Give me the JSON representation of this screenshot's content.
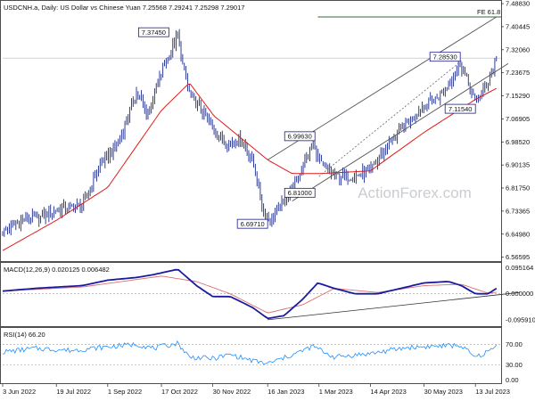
{
  "header": {
    "symbol_line": "USDCNH.a, Daily:  US Dollar vs Chinese Yuan  7.25568 7.29241 7.25298 7.29017",
    "macd_line": "MACD(12,26,9) 0.020125 0.006482",
    "rsi_line": "RSI(14) 66.20"
  },
  "watermark": "ActionForex.com",
  "colors": {
    "candle": "#1b2a8a",
    "ma": "#e01b1b",
    "channel": "#555555",
    "fe_line": "#2f6b2f",
    "macd": "#1a1aa0",
    "signal": "#d97070",
    "rsi": "#1e90ff"
  },
  "chart_data": [
    {
      "type": "candlestick",
      "title": "USDCNH.a, Daily: US Dollar vs Chinese Yuan",
      "ylim": [
        6.555,
        7.495
      ],
      "y_ticks": [
        "7.48830",
        "7.40445",
        "7.32060",
        "7.23675",
        "7.15290",
        "7.06905",
        "6.98520",
        "6.90135",
        "6.81750",
        "6.73365",
        "6.64980",
        "6.56595"
      ],
      "x_ticks": [
        "3 Jun 2022",
        "19 Jul 2022",
        "1 Sep 2022",
        "17 Oct 2022",
        "30 Nov 2022",
        "16 Jan 2023",
        "1 Mar 2023",
        "14 Apr 2023",
        "30 May 2023",
        "13 Jul 2023"
      ],
      "price_path": [
        [
          "2022-06-03",
          6.66
        ],
        [
          "2022-06-20",
          6.7
        ],
        [
          "2022-07-05",
          6.71
        ],
        [
          "2022-07-19",
          6.74
        ],
        [
          "2022-08-10",
          6.75
        ],
        [
          "2022-08-25",
          6.9
        ],
        [
          "2022-09-10",
          6.98
        ],
        [
          "2022-09-26",
          7.17
        ],
        [
          "2022-10-05",
          7.08
        ],
        [
          "2022-10-17",
          7.24
        ],
        [
          "2022-10-31",
          7.37
        ],
        [
          "2022-11-04",
          7.27
        ],
        [
          "2022-11-10",
          7.16
        ],
        [
          "2022-11-20",
          7.1
        ],
        [
          "2022-11-30",
          7.04
        ],
        [
          "2022-12-12",
          6.98
        ],
        [
          "2022-12-24",
          7.0
        ],
        [
          "2023-01-03",
          6.92
        ],
        [
          "2023-01-13",
          6.72
        ],
        [
          "2023-01-18",
          6.7
        ],
        [
          "2023-01-25",
          6.74
        ],
        [
          "2023-02-07",
          6.82
        ],
        [
          "2023-02-24",
          6.98
        ],
        [
          "2023-03-03",
          6.9
        ],
        [
          "2023-03-14",
          6.86
        ],
        [
          "2023-04-01",
          6.86
        ],
        [
          "2023-04-14",
          6.88
        ],
        [
          "2023-04-30",
          6.98
        ],
        [
          "2023-05-17",
          7.06
        ],
        [
          "2023-05-30",
          7.12
        ],
        [
          "2023-06-15",
          7.16
        ],
        [
          "2023-06-30",
          7.27
        ],
        [
          "2023-07-13",
          7.13
        ],
        [
          "2023-07-20",
          7.17
        ],
        [
          "2023-07-28",
          7.25
        ],
        [
          "2023-07-31",
          7.29
        ]
      ],
      "moving_average": [
        [
          "2022-06-03",
          6.59
        ],
        [
          "2022-07-19",
          6.7
        ],
        [
          "2022-09-01",
          6.82
        ],
        [
          "2022-10-17",
          7.1
        ],
        [
          "2022-11-10",
          7.2
        ],
        [
          "2022-12-01",
          7.08
        ],
        [
          "2023-01-16",
          6.92
        ],
        [
          "2023-02-06",
          6.87
        ],
        [
          "2023-03-01",
          6.87
        ],
        [
          "2023-04-14",
          6.88
        ],
        [
          "2023-05-30",
          7.02
        ],
        [
          "2023-07-13",
          7.14
        ],
        [
          "2023-07-31",
          7.18
        ]
      ],
      "channel_lines": [
        [
          [
            "2023-01-16",
            6.92
          ],
          [
            "2023-07-31",
            7.44
          ]
        ],
        [
          [
            "2023-02-06",
            6.77
          ],
          [
            "2023-08-10",
            7.27
          ]
        ]
      ],
      "fe_level": {
        "label": "FE 61.8",
        "value": 7.44,
        "start": "2023-02-28"
      },
      "current_price": 7.29017,
      "annotations": [
        {
          "text": "7.37450",
          "date": "2022-10-31",
          "value": 7.3745
        },
        {
          "text": "6.99630",
          "date": "2023-02-24",
          "value": 6.9963
        },
        {
          "text": "6.81000",
          "date": "2023-02-24",
          "value": 6.81
        },
        {
          "text": "6.69710",
          "date": "2023-01-16",
          "value": 6.6971
        },
        {
          "text": "7.28530",
          "date": "2023-06-30",
          "value": 7.2853
        },
        {
          "text": "7.11540",
          "date": "2023-07-13",
          "value": 7.1154
        }
      ]
    },
    {
      "type": "line",
      "title": "MACD(12,26,9)",
      "ylim": [
        -0.115,
        0.11
      ],
      "y_ticks": [
        "0.095164",
        "0.000000",
        "-0.095910"
      ],
      "series": [
        {
          "name": "MACD",
          "points": [
            [
              "2022-06-03",
              0.01
            ],
            [
              "2022-07-01",
              0.02
            ],
            [
              "2022-08-10",
              0.03
            ],
            [
              "2022-09-01",
              0.05
            ],
            [
              "2022-09-26",
              0.06
            ],
            [
              "2022-10-10",
              0.07
            ],
            [
              "2022-10-31",
              0.09
            ],
            [
              "2022-11-16",
              0.03
            ],
            [
              "2022-11-30",
              -0.01
            ],
            [
              "2022-12-15",
              -0.01
            ],
            [
              "2023-01-03",
              -0.05
            ],
            [
              "2023-01-16",
              -0.09
            ],
            [
              "2023-01-30",
              -0.08
            ],
            [
              "2023-02-15",
              -0.02
            ],
            [
              "2023-02-28",
              0.04
            ],
            [
              "2023-03-14",
              0.02
            ],
            [
              "2023-04-01",
              0.0
            ],
            [
              "2023-04-20",
              0.0
            ],
            [
              "2023-05-10",
              0.02
            ],
            [
              "2023-05-30",
              0.04
            ],
            [
              "2023-06-20",
              0.045
            ],
            [
              "2023-07-01",
              0.03
            ],
            [
              "2023-07-13",
              0.0
            ],
            [
              "2023-07-24",
              0.0
            ],
            [
              "2023-07-31",
              0.02
            ]
          ]
        },
        {
          "name": "Signal",
          "points": [
            [
              "2022-06-03",
              0.01
            ],
            [
              "2022-08-10",
              0.025
            ],
            [
              "2022-10-17",
              0.065
            ],
            [
              "2022-11-16",
              0.045
            ],
            [
              "2022-12-15",
              0.0
            ],
            [
              "2023-01-16",
              -0.07
            ],
            [
              "2023-02-15",
              -0.04
            ],
            [
              "2023-03-14",
              0.02
            ],
            [
              "2023-04-20",
              0.005
            ],
            [
              "2023-05-30",
              0.03
            ],
            [
              "2023-07-01",
              0.035
            ],
            [
              "2023-07-24",
              0.002
            ],
            [
              "2023-07-31",
              0.006
            ]
          ]
        }
      ],
      "trendline": [
        [
          "2023-01-16",
          -0.095
        ],
        [
          "2023-08-20",
          0.005
        ]
      ]
    },
    {
      "type": "line",
      "title": "RSI(14)",
      "ylim": [
        -4,
        100
      ],
      "y_ticks": [
        "70.00",
        "30.00",
        "0.00"
      ],
      "levels": [
        70,
        30
      ],
      "series": [
        {
          "name": "RSI",
          "points": [
            [
              "2022-06-03",
              55
            ],
            [
              "2022-07-01",
              62
            ],
            [
              "2022-08-01",
              58
            ],
            [
              "2022-09-01",
              65
            ],
            [
              "2022-09-26",
              70
            ],
            [
              "2022-10-10",
              62
            ],
            [
              "2022-10-31",
              72
            ],
            [
              "2022-11-10",
              45
            ],
            [
              "2022-11-30",
              42
            ],
            [
              "2022-12-15",
              50
            ],
            [
              "2023-01-03",
              38
            ],
            [
              "2023-01-16",
              32
            ],
            [
              "2023-02-07",
              50
            ],
            [
              "2023-02-24",
              66
            ],
            [
              "2023-03-14",
              45
            ],
            [
              "2023-04-14",
              52
            ],
            [
              "2023-05-17",
              64
            ],
            [
              "2023-06-30",
              68
            ],
            [
              "2023-07-13",
              44
            ],
            [
              "2023-07-24",
              56
            ],
            [
              "2023-07-31",
              66
            ]
          ]
        }
      ]
    }
  ]
}
